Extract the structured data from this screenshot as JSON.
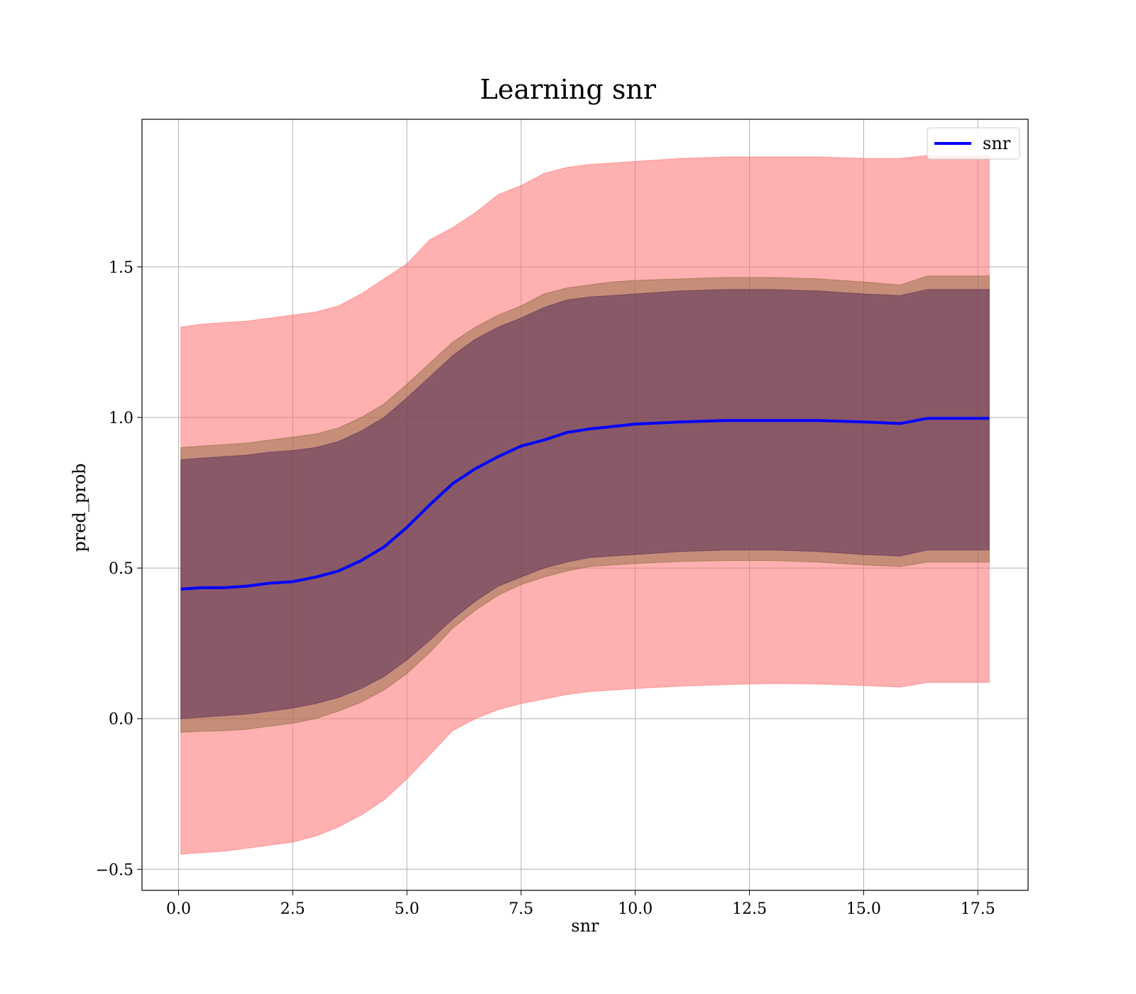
{
  "chart_data": {
    "type": "line",
    "title": "Learning snr",
    "xlabel": "snr",
    "ylabel": "pred_prob",
    "xlim": [
      -0.8,
      18.6
    ],
    "ylim": [
      -0.57,
      1.99
    ],
    "grid": true,
    "legend_position": "top-right",
    "x_ticks": [
      {
        "value": 0,
        "label": "0.0"
      },
      {
        "value": 2.5,
        "label": "2.5"
      },
      {
        "value": 5,
        "label": "5.0"
      },
      {
        "value": 7.5,
        "label": "7.5"
      },
      {
        "value": 10,
        "label": "10.0"
      },
      {
        "value": 12.5,
        "label": "12.5"
      },
      {
        "value": 15,
        "label": "15.0"
      },
      {
        "value": 17.5,
        "label": "17.5"
      }
    ],
    "y_ticks": [
      {
        "value": -0.5,
        "label": "−0.5"
      },
      {
        "value": 0,
        "label": "0.0"
      },
      {
        "value": 0.5,
        "label": "0.5"
      },
      {
        "value": 1,
        "label": "1.0"
      },
      {
        "value": 1.5,
        "label": "1.5"
      }
    ],
    "x": [
      0.05,
      0.5,
      1.0,
      1.5,
      2.0,
      2.5,
      3.0,
      3.5,
      4.0,
      4.5,
      5.0,
      5.5,
      6.0,
      6.5,
      7.0,
      7.5,
      8.0,
      8.5,
      9.0,
      9.5,
      10.0,
      11.0,
      12.0,
      13.0,
      14.0,
      15.0,
      15.8,
      16.4,
      17.0,
      17.75
    ],
    "series": [
      {
        "name": "snr",
        "color": "#0000ff",
        "values": [
          0.43,
          0.435,
          0.435,
          0.44,
          0.45,
          0.455,
          0.47,
          0.49,
          0.525,
          0.57,
          0.635,
          0.71,
          0.78,
          0.83,
          0.87,
          0.905,
          0.925,
          0.95,
          0.962,
          0.97,
          0.978,
          0.985,
          0.99,
          0.99,
          0.99,
          0.985,
          0.98,
          0.997,
          0.997,
          0.997
        ]
      }
    ],
    "bands": [
      {
        "color": "#ff6f6f",
        "opacity": 0.55,
        "lower": [
          -0.45,
          -0.445,
          -0.44,
          -0.43,
          -0.42,
          -0.41,
          -0.39,
          -0.36,
          -0.32,
          -0.27,
          -0.2,
          -0.12,
          -0.04,
          0.0,
          0.03,
          0.05,
          0.065,
          0.08,
          0.09,
          0.095,
          0.1,
          0.108,
          0.113,
          0.117,
          0.115,
          0.11,
          0.105,
          0.12,
          0.12,
          0.12
        ],
        "upper": [
          1.3,
          1.31,
          1.315,
          1.32,
          1.33,
          1.34,
          1.35,
          1.37,
          1.41,
          1.46,
          1.51,
          1.59,
          1.63,
          1.68,
          1.74,
          1.77,
          1.81,
          1.83,
          1.84,
          1.845,
          1.85,
          1.86,
          1.865,
          1.865,
          1.865,
          1.86,
          1.86,
          1.87,
          1.87,
          1.87
        ]
      },
      {
        "color": "#8e6a3f",
        "opacity": 0.5,
        "lower": [
          -0.045,
          -0.042,
          -0.04,
          -0.035,
          -0.025,
          -0.015,
          0.0,
          0.025,
          0.055,
          0.095,
          0.15,
          0.22,
          0.3,
          0.36,
          0.41,
          0.445,
          0.47,
          0.49,
          0.505,
          0.51,
          0.515,
          0.522,
          0.525,
          0.525,
          0.52,
          0.51,
          0.505,
          0.52,
          0.52,
          0.52
        ],
        "upper": [
          0.9,
          0.905,
          0.91,
          0.915,
          0.925,
          0.935,
          0.945,
          0.965,
          1.0,
          1.045,
          1.11,
          1.18,
          1.25,
          1.3,
          1.34,
          1.37,
          1.41,
          1.43,
          1.44,
          1.45,
          1.455,
          1.46,
          1.465,
          1.465,
          1.46,
          1.45,
          1.44,
          1.47,
          1.47,
          1.47
        ]
      },
      {
        "color": "#5a2f5a",
        "opacity": 0.55,
        "lower": [
          0.0,
          0.005,
          0.01,
          0.015,
          0.025,
          0.035,
          0.05,
          0.07,
          0.1,
          0.14,
          0.195,
          0.26,
          0.33,
          0.39,
          0.44,
          0.47,
          0.5,
          0.52,
          0.535,
          0.54,
          0.545,
          0.555,
          0.56,
          0.56,
          0.555,
          0.545,
          0.54,
          0.56,
          0.56,
          0.56
        ],
        "upper": [
          0.86,
          0.865,
          0.87,
          0.875,
          0.885,
          0.89,
          0.9,
          0.92,
          0.955,
          1.0,
          1.065,
          1.135,
          1.205,
          1.26,
          1.3,
          1.33,
          1.365,
          1.39,
          1.4,
          1.405,
          1.41,
          1.42,
          1.425,
          1.425,
          1.42,
          1.41,
          1.405,
          1.425,
          1.425,
          1.425
        ]
      }
    ]
  }
}
